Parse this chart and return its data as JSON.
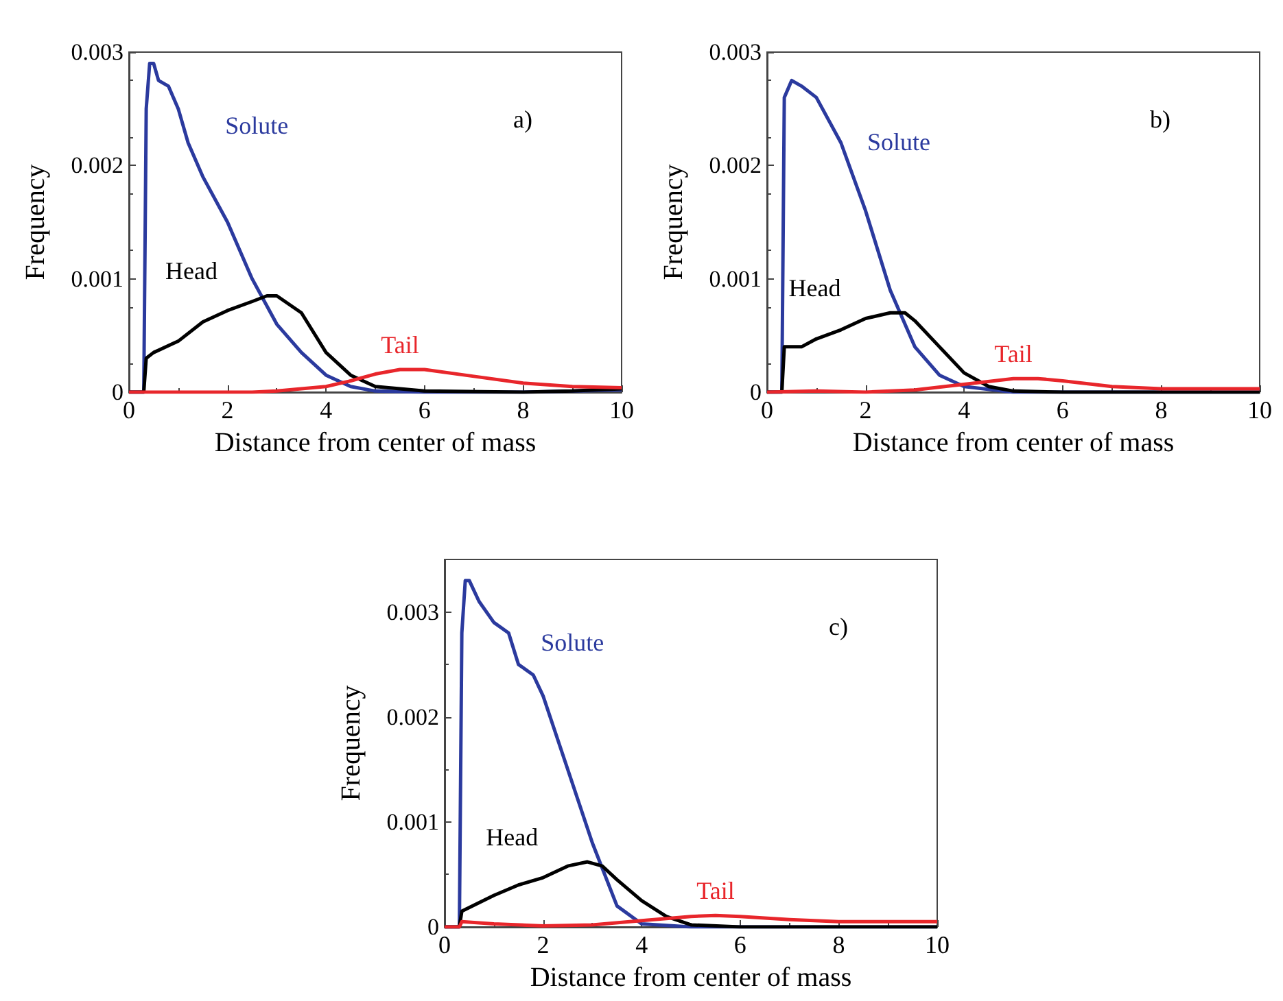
{
  "chart_data": [
    {
      "type": "line",
      "xlabel": "Distance from center of mass",
      "ylabel": "Frequency",
      "annotations": [
        "a)"
      ],
      "xlim": [
        0,
        10
      ],
      "xticks": [
        0,
        2,
        4,
        6,
        8,
        10
      ],
      "ylim": [
        0,
        0.003
      ],
      "yticks": [
        0,
        0.001,
        0.002,
        0.003
      ],
      "series": [
        {
          "name": "Solute",
          "color": "#2b3a9e",
          "x": [
            0,
            0.3,
            0.35,
            0.42,
            0.5,
            0.6,
            0.8,
            1.0,
            1.2,
            1.5,
            2.0,
            2.5,
            3.0,
            3.5,
            4.0,
            4.5,
            5,
            6,
            8,
            10
          ],
          "values": [
            0,
            0,
            0.0025,
            0.0029,
            0.0029,
            0.00275,
            0.0027,
            0.0025,
            0.0022,
            0.0019,
            0.0015,
            0.001,
            0.0006,
            0.00035,
            0.00015,
            5e-05,
            1e-05,
            0,
            0,
            2e-05
          ]
        },
        {
          "name": "Head",
          "color": "#000000",
          "x": [
            0,
            0.3,
            0.35,
            0.5,
            1.0,
            1.5,
            2.0,
            2.5,
            2.8,
            3.0,
            3.5,
            4.0,
            4.5,
            5,
            6,
            8,
            9,
            10
          ],
          "values": [
            0,
            0,
            0.0003,
            0.00035,
            0.00045,
            0.00062,
            0.00072,
            0.0008,
            0.00085,
            0.00085,
            0.0007,
            0.00035,
            0.00015,
            5e-05,
            1e-05,
            0,
            1e-05,
            3e-05
          ]
        },
        {
          "name": "Tail",
          "color": "#e8262b",
          "x": [
            0,
            2.5,
            3,
            4,
            4.5,
            5,
            5.5,
            6,
            7,
            8,
            9,
            10
          ],
          "values": [
            0,
            0,
            1e-05,
            5e-05,
            0.0001,
            0.00016,
            0.0002,
            0.0002,
            0.00014,
            8e-05,
            5e-05,
            4e-05
          ]
        }
      ]
    },
    {
      "type": "line",
      "xlabel": "Distance from center of mass",
      "ylabel": "Frequency",
      "annotations": [
        "b)"
      ],
      "xlim": [
        0,
        10
      ],
      "xticks": [
        0,
        2,
        4,
        6,
        8,
        10
      ],
      "ylim": [
        0,
        0.003
      ],
      "yticks": [
        0,
        0.001,
        0.002,
        0.003
      ],
      "series": [
        {
          "name": "Solute",
          "color": "#2b3a9e",
          "x": [
            0,
            0.3,
            0.35,
            0.5,
            0.7,
            1.0,
            1.5,
            2.0,
            2.5,
            3.0,
            3.5,
            4,
            5,
            10
          ],
          "values": [
            0,
            0,
            0.0026,
            0.00275,
            0.0027,
            0.0026,
            0.0022,
            0.0016,
            0.0009,
            0.0004,
            0.00015,
            5e-05,
            0,
            0
          ]
        },
        {
          "name": "Head",
          "color": "#000000",
          "x": [
            0,
            0.3,
            0.35,
            0.7,
            1.0,
            1.5,
            2.0,
            2.5,
            2.8,
            3.0,
            3.5,
            4.0,
            4.5,
            5,
            6,
            10
          ],
          "values": [
            0,
            0,
            0.0004,
            0.0004,
            0.00047,
            0.00055,
            0.00065,
            0.0007,
            0.0007,
            0.00063,
            0.0004,
            0.00017,
            5e-05,
            1e-05,
            0,
            0
          ]
        },
        {
          "name": "Tail",
          "color": "#e8262b",
          "x": [
            0,
            1,
            2,
            3,
            4,
            5,
            5.5,
            6,
            7,
            8,
            10
          ],
          "values": [
            0,
            1e-05,
            0,
            2e-05,
            7e-05,
            0.00012,
            0.00012,
            0.0001,
            5e-05,
            3e-05,
            3e-05
          ]
        }
      ]
    },
    {
      "type": "line",
      "xlabel": "Distance from center of mass",
      "ylabel": "Frequency",
      "annotations": [
        "c)"
      ],
      "xlim": [
        0,
        10
      ],
      "xticks": [
        0,
        2,
        4,
        6,
        8,
        10
      ],
      "ylim": [
        0,
        0.0035
      ],
      "yticks": [
        0,
        0.001,
        0.002,
        0.003
      ],
      "series": [
        {
          "name": "Solute",
          "color": "#2b3a9e",
          "x": [
            0,
            0.3,
            0.35,
            0.42,
            0.5,
            0.7,
            1.0,
            1.3,
            1.5,
            1.8,
            2.0,
            2.5,
            3.0,
            3.5,
            4.0,
            5,
            10
          ],
          "values": [
            0,
            0,
            0.0028,
            0.0033,
            0.0033,
            0.0031,
            0.0029,
            0.0028,
            0.0025,
            0.0024,
            0.0022,
            0.0015,
            0.0008,
            0.0002,
            3e-05,
            0,
            0
          ]
        },
        {
          "name": "Head",
          "color": "#000000",
          "x": [
            0,
            0.3,
            0.35,
            1.0,
            1.5,
            2.0,
            2.5,
            2.9,
            3.2,
            3.5,
            4.0,
            4.5,
            5,
            6,
            10
          ],
          "values": [
            0,
            0,
            0.00015,
            0.0003,
            0.0004,
            0.00047,
            0.00058,
            0.00062,
            0.00058,
            0.00045,
            0.00025,
            0.0001,
            2e-05,
            0,
            0
          ]
        },
        {
          "name": "Tail",
          "color": "#e8262b",
          "x": [
            0,
            0.3,
            0.35,
            1,
            2,
            3,
            4,
            5,
            5.5,
            6,
            7,
            8,
            10
          ],
          "values": [
            0,
            0,
            5e-05,
            3e-05,
            1e-05,
            2e-05,
            6e-05,
            0.0001,
            0.00011,
            0.0001,
            7e-05,
            5e-05,
            5e-05
          ]
        }
      ]
    }
  ]
}
